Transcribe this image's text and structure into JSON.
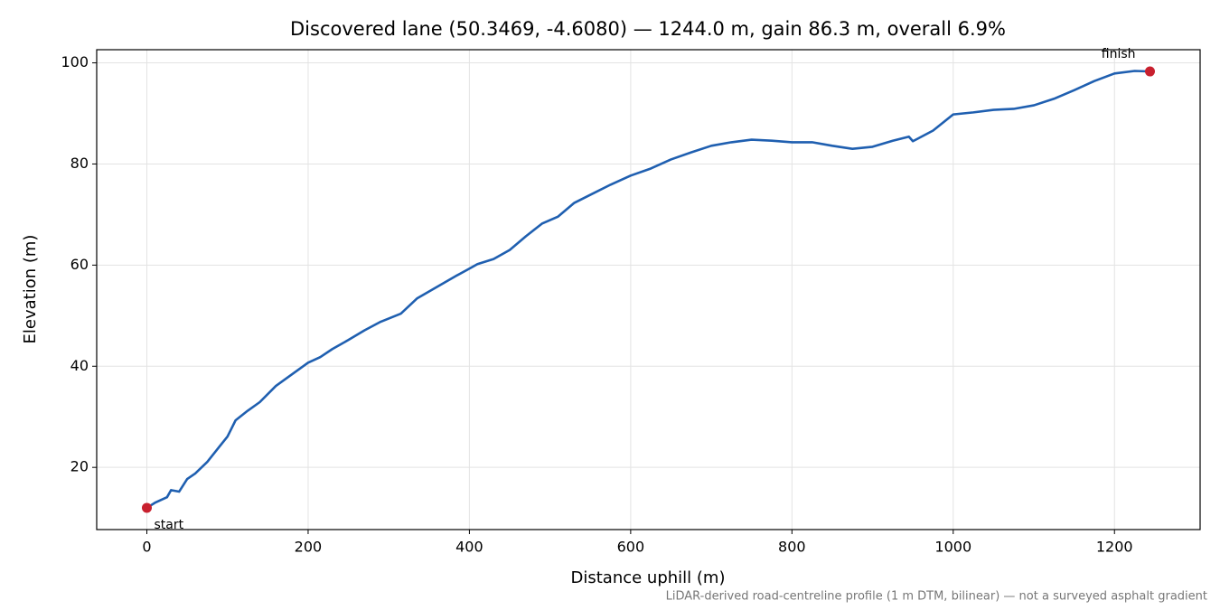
{
  "chart_data": {
    "type": "line",
    "title": "Discovered lane (50.3469, -4.6080) — 1244.0 m, gain 86.3 m, overall 6.9%",
    "xlabel": "Distance uphill (m)",
    "ylabel": "Elevation (m)",
    "footnote": "LiDAR-derived road-centreline profile (1 m DTM, bilinear) — not a surveyed asphalt gradient",
    "x": [
      0,
      10,
      25,
      30,
      40,
      50,
      60,
      75,
      90,
      100,
      110,
      125,
      140,
      160,
      180,
      200,
      215,
      230,
      250,
      270,
      290,
      315,
      335,
      360,
      385,
      400,
      410,
      430,
      450,
      470,
      490,
      510,
      530,
      550,
      575,
      600,
      625,
      650,
      675,
      700,
      725,
      750,
      775,
      800,
      825,
      850,
      875,
      900,
      925,
      945,
      950,
      975,
      1000,
      1025,
      1050,
      1075,
      1100,
      1125,
      1150,
      1175,
      1200,
      1225,
      1244
    ],
    "series": [
      {
        "color": "#1f5fb0",
        "values": [
          12.0,
          13.0,
          14.1,
          15.5,
          15.2,
          17.7,
          18.8,
          21.1,
          24.1,
          26.1,
          29.3,
          31.2,
          32.9,
          36.1,
          38.4,
          40.7,
          41.8,
          43.4,
          45.2,
          47.1,
          48.8,
          50.4,
          53.4,
          55.7,
          58.0,
          59.3,
          60.2,
          61.2,
          63.0,
          65.7,
          68.2,
          69.6,
          72.3,
          73.9,
          75.9,
          77.7,
          79.1,
          80.9,
          82.3,
          83.6,
          84.3,
          84.8,
          84.6,
          84.3,
          84.3,
          83.6,
          83.0,
          83.4,
          84.6,
          85.4,
          84.5,
          86.6,
          89.8,
          90.2,
          90.7,
          90.9,
          91.6,
          92.9,
          94.6,
          96.4,
          97.9,
          98.4,
          98.3
        ]
      }
    ],
    "markers": {
      "color": "#c8202e",
      "x": [
        0,
        1244
      ],
      "y": [
        12.0,
        98.3
      ],
      "labels": [
        "start",
        "finish"
      ]
    },
    "xlim": [
      -62.2,
      1306.2
    ],
    "ylim": [
      7.7,
      102.6
    ],
    "xticks": [
      0,
      200,
      400,
      600,
      800,
      1000,
      1200
    ],
    "yticks": [
      20,
      40,
      60,
      80,
      100
    ],
    "grid": true
  }
}
